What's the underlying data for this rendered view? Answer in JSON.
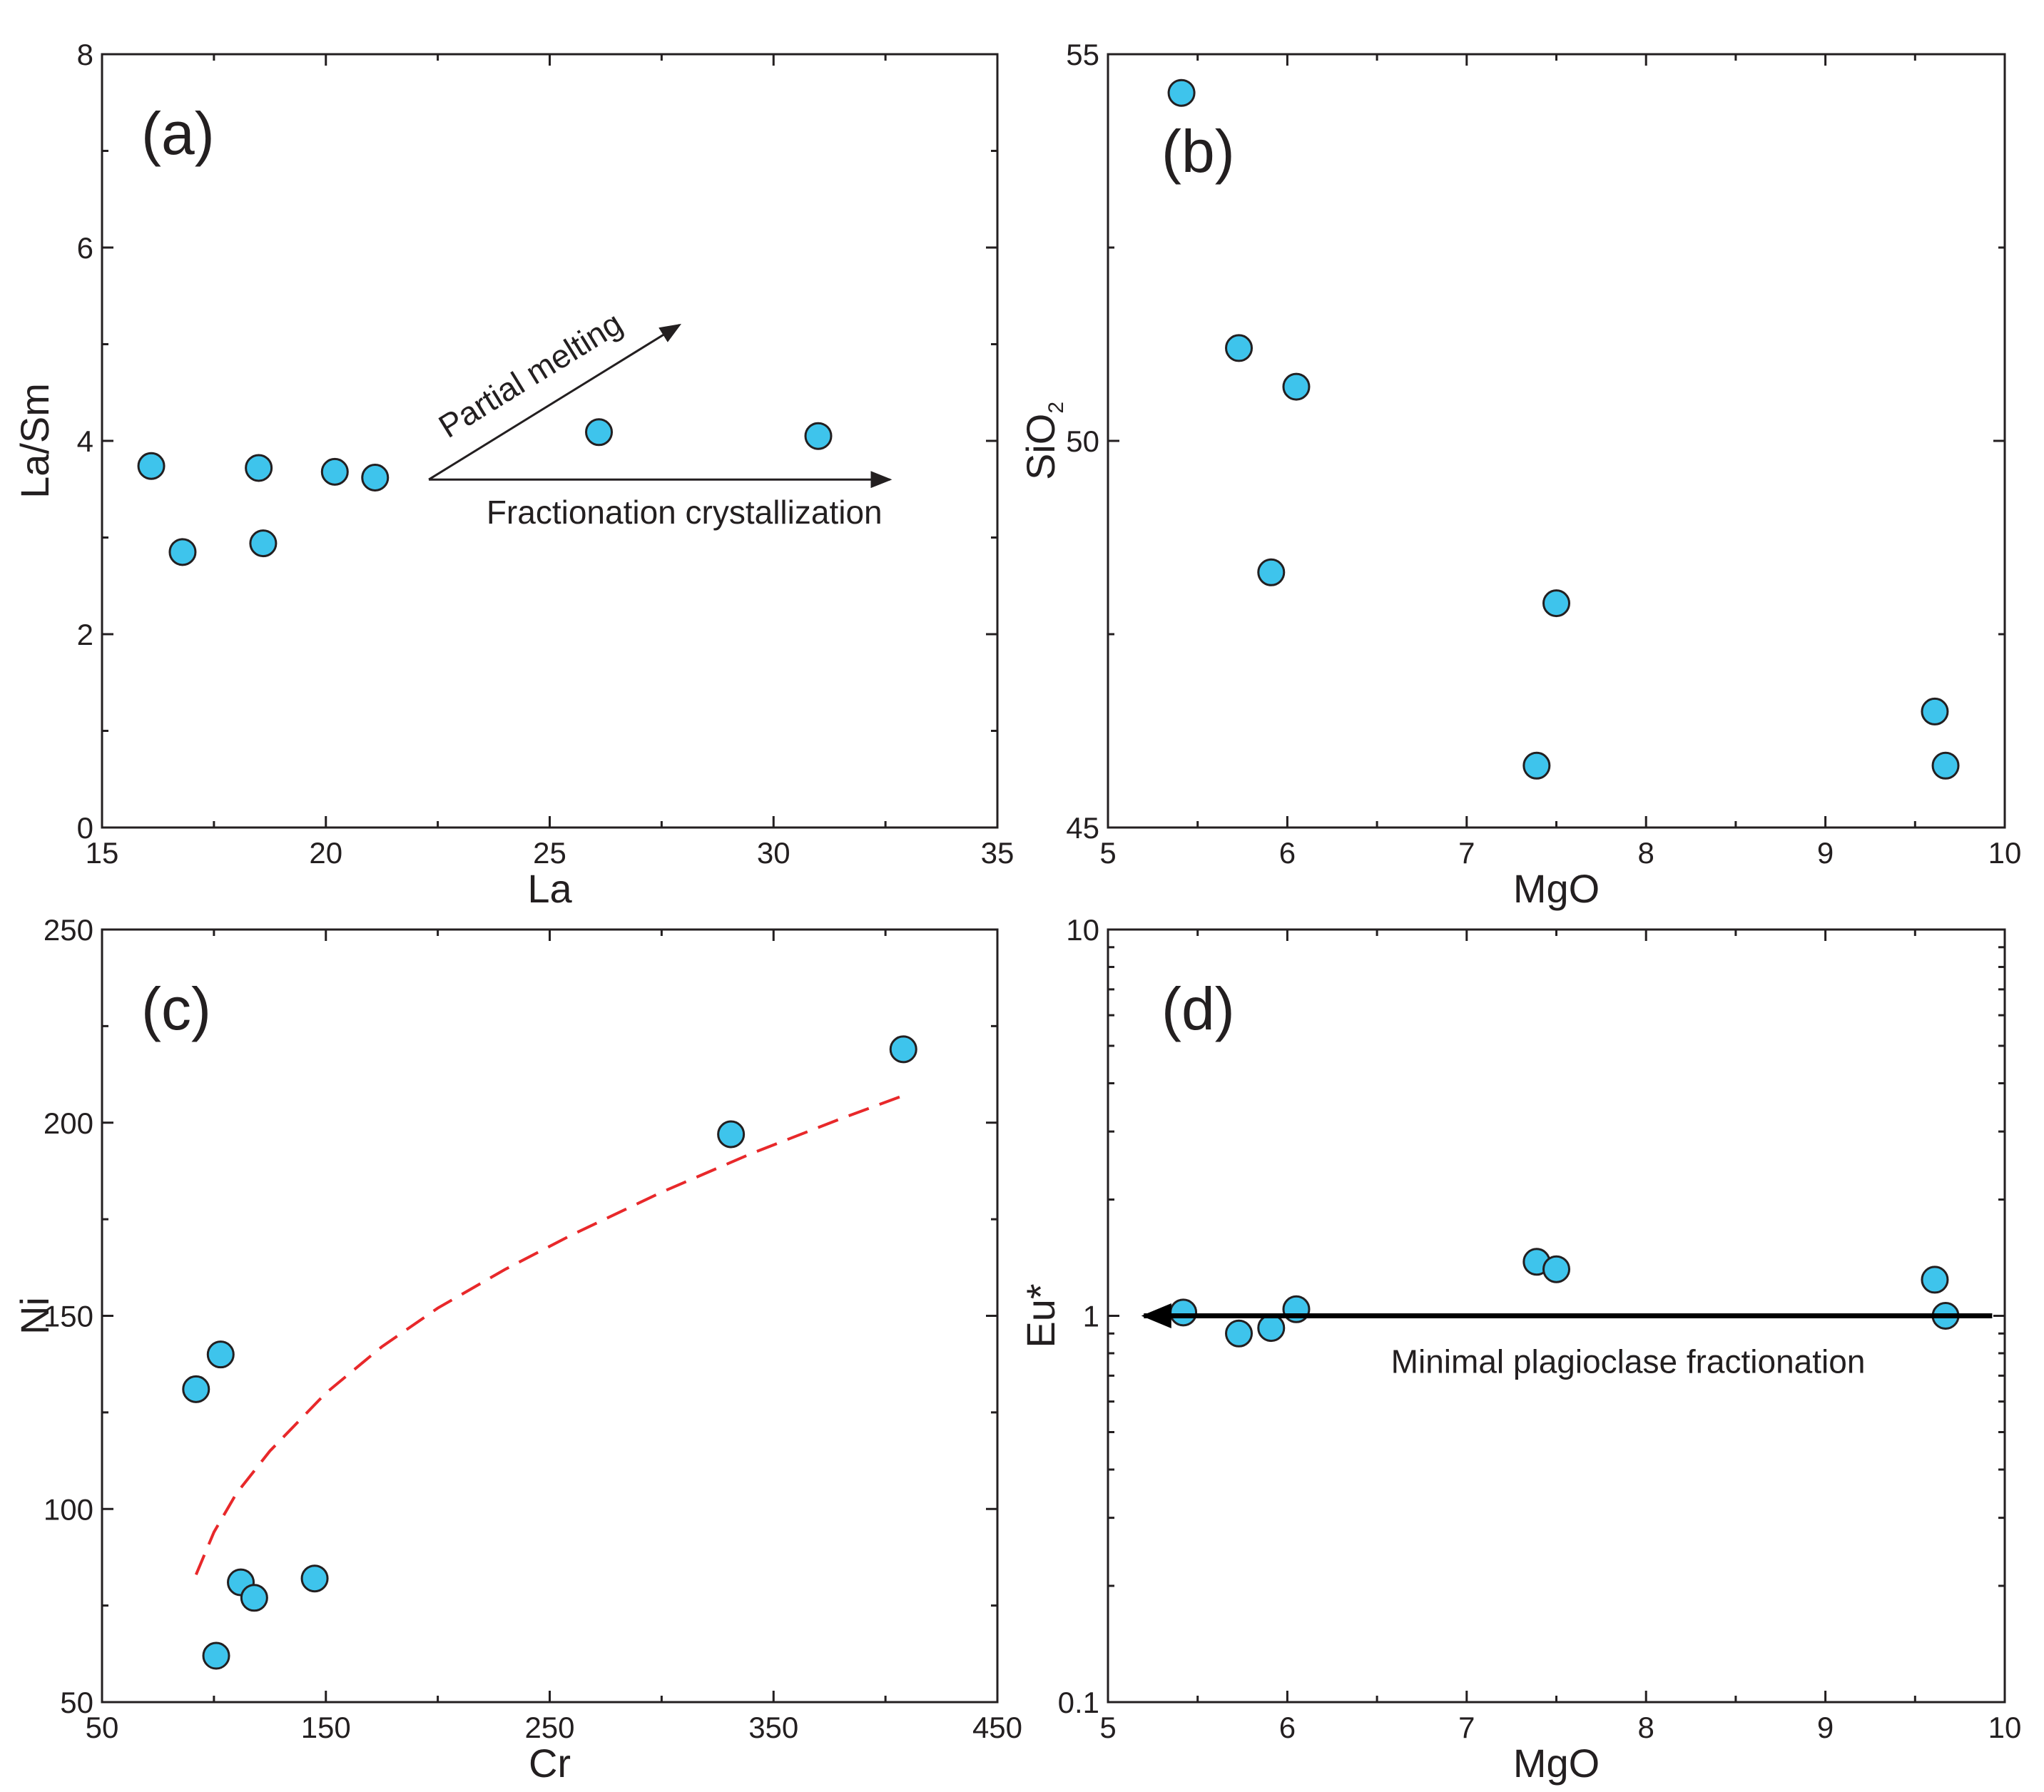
{
  "chart_data": [
    {
      "type": "scatter",
      "panel_label": "(a)",
      "xlabel": "La",
      "ylabel": "La/Sm",
      "xlim": [
        15,
        35
      ],
      "ylim": [
        0,
        8
      ],
      "xticks": [
        "15",
        "20",
        "25",
        "30",
        "35"
      ],
      "yticks": [
        "0",
        "2",
        "4",
        "6",
        "8"
      ],
      "grid": false,
      "series": [
        {
          "color": "#3ec4ec",
          "x": [
            16.1,
            16.8,
            18.5,
            18.6,
            20.2,
            21.1,
            26.1,
            31.0
          ],
          "y": [
            3.74,
            2.85,
            3.72,
            2.94,
            3.68,
            3.62,
            4.09,
            4.05
          ]
        }
      ],
      "annotations": [
        {
          "text": "Partial melting",
          "type": "arrow",
          "from": [
            22.3,
            3.6
          ],
          "to": [
            27.9,
            5.2
          ]
        },
        {
          "text": "Fractionation crystallization",
          "type": "arrow",
          "from": [
            22.3,
            3.6
          ],
          "to": [
            32.6,
            3.6
          ]
        }
      ]
    },
    {
      "type": "scatter",
      "panel_label": "(b)",
      "xlabel": "MgO",
      "ylabel": "SiO",
      "ylabel_subscript": "2",
      "xlim": [
        5,
        10
      ],
      "ylim": [
        45,
        55
      ],
      "xticks": [
        "5",
        "6",
        "7",
        "8",
        "9",
        "10"
      ],
      "yticks": [
        "45",
        "50",
        "55"
      ],
      "grid": false,
      "series": [
        {
          "color": "#3ec4ec",
          "x": [
            5.41,
            5.73,
            6.05,
            5.91,
            7.5,
            7.39,
            9.61,
            9.67
          ],
          "y": [
            54.5,
            51.2,
            50.7,
            48.3,
            47.9,
            45.8,
            46.5,
            45.8
          ]
        }
      ]
    },
    {
      "type": "scatter",
      "panel_label": "(c)",
      "xlabel": "Cr",
      "ylabel": "Ni",
      "xlim": [
        50,
        450
      ],
      "ylim": [
        50,
        250
      ],
      "xticks": [
        "50",
        "150",
        "250",
        "350",
        "450"
      ],
      "yticks": [
        "50",
        "100",
        "150",
        "200",
        "250"
      ],
      "grid": false,
      "series": [
        {
          "color": "#3ec4ec",
          "x": [
            92,
            103,
            112,
            118,
            145,
            101,
            331,
            408
          ],
          "y": [
            131,
            140,
            81,
            77,
            82,
            62,
            197,
            219
          ]
        },
        {
          "type": "line",
          "style": "dashed",
          "color": "#e8282a",
          "x": [
            92,
            100,
            110,
            125,
            150,
            175,
            200,
            230,
            260,
            300,
            340,
            380,
            408
          ],
          "y": [
            83,
            94,
            104,
            115,
            130,
            142,
            152,
            162,
            171,
            182,
            192,
            201,
            207
          ]
        }
      ]
    },
    {
      "type": "scatter",
      "panel_label": "(d)",
      "xlabel": "MgO",
      "ylabel": "Eu*",
      "xlim": [
        5,
        10
      ],
      "ylim": [
        0.1,
        10
      ],
      "yscale": "log",
      "xticks": [
        "5",
        "6",
        "7",
        "8",
        "9",
        "10"
      ],
      "yticks": [
        "0.1",
        "1",
        "10"
      ],
      "grid": false,
      "series": [
        {
          "color": "#3ec4ec",
          "x": [
            5.42,
            5.73,
            5.91,
            6.05,
            7.39,
            7.5,
            9.61,
            9.67
          ],
          "y": [
            1.02,
            0.9,
            0.93,
            1.04,
            1.38,
            1.32,
            1.24,
            1.0
          ]
        }
      ],
      "annotations": [
        {
          "text": "Minimal plagioclase fractionation",
          "type": "arrow",
          "from": [
            9.93,
            1.0
          ],
          "to": [
            5.2,
            1.0
          ]
        }
      ]
    }
  ]
}
